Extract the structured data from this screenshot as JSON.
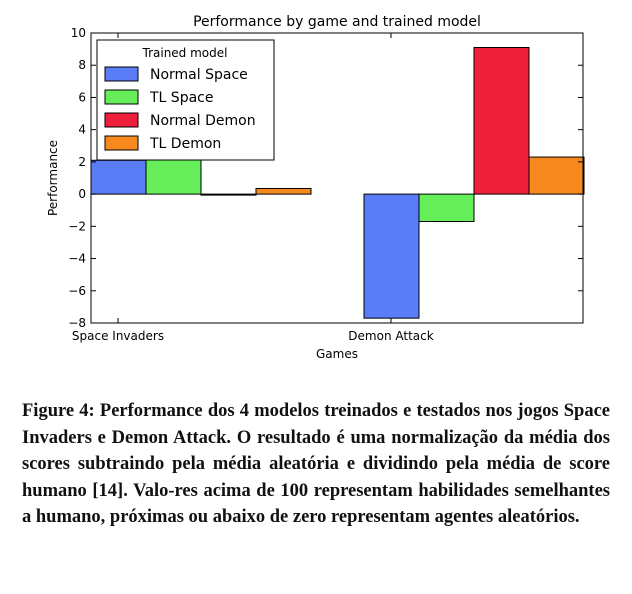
{
  "chart_data": {
    "type": "bar",
    "title": "Performance by game and trained model",
    "xlabel": "Games",
    "ylabel": "Performance",
    "categories": [
      "Space Invaders",
      "Demon Attack"
    ],
    "ylim": [
      -8,
      10
    ],
    "yticks": [
      10,
      8,
      6,
      4,
      2,
      0,
      -2,
      -4,
      -6,
      -8
    ],
    "ytick_labels": [
      "10",
      "8",
      "6",
      "4",
      "2",
      "0",
      "−2",
      "−4",
      "−6",
      "−8"
    ],
    "legend": {
      "title": "Trained model",
      "placement": "top-left"
    },
    "series": [
      {
        "name": "Normal Space",
        "color": "#5b7cf7",
        "values": [
          2.1,
          -7.7
        ]
      },
      {
        "name": "TL Space",
        "color": "#66ee5a",
        "values": [
          2.2,
          -1.7
        ]
      },
      {
        "name": "Normal Demon",
        "color": "#f0203c",
        "values": [
          -0.05,
          9.1
        ]
      },
      {
        "name": "TL Demon",
        "color": "#f78a1e",
        "values": [
          0.35,
          2.3
        ]
      }
    ],
    "grid": false
  },
  "caption": {
    "text": "Figure 4: Performance dos 4 modelos treinados e testados nos jogos Space Invaders e Demon Attack. O resultado é uma normalização da média dos scores subtraindo pela média aleatória e dividindo pela média de score humano [14]. Valo-res acima de 100 representam habilidades semelhantes a humano, próximas ou abaixo de zero representam agentes aleatórios."
  }
}
